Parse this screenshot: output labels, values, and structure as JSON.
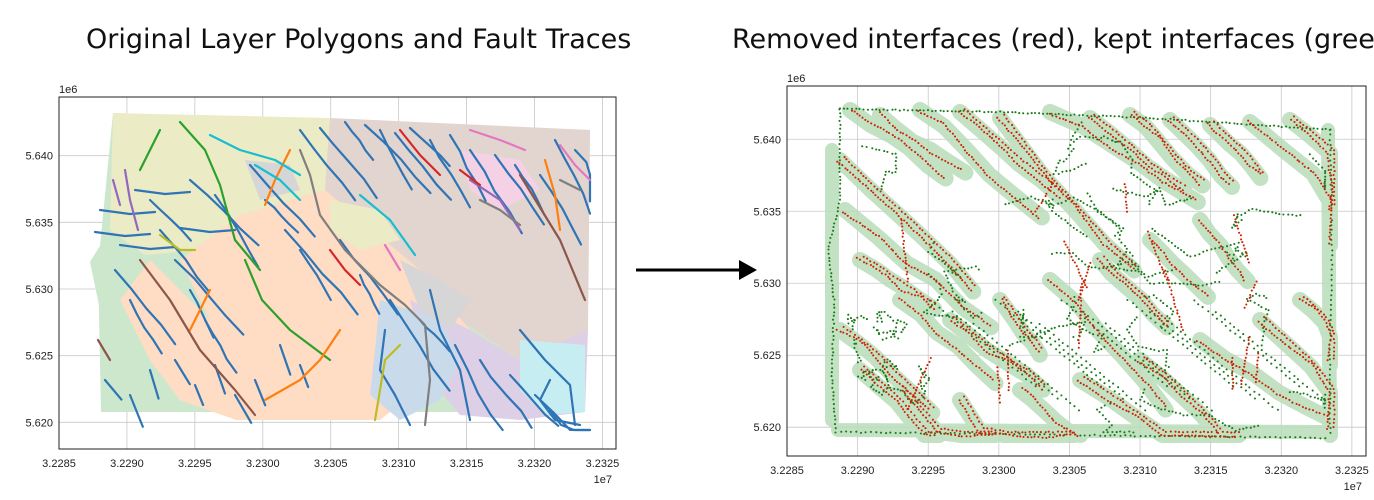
{
  "titles": {
    "left": "Original Layer Polygons and Fault Traces",
    "right": "Removed interfaces (red), kept interfaces (green)"
  },
  "chart_data": [
    {
      "type": "map",
      "title": "Original Layer Polygons and Fault Traces",
      "xlim": [
        3.2285,
        3.2326
      ],
      "ylim": [
        5.618,
        5.6444
      ],
      "x_offset_label": "1e7",
      "y_offset_label": "1e6",
      "x_ticks": [
        3.2285,
        3.229,
        3.2295,
        3.23,
        3.2305,
        3.231,
        3.2315,
        3.232,
        3.2325
      ],
      "x_tick_labels": [
        "3.2285",
        "3.2290",
        "3.2295",
        "3.2300",
        "3.2305",
        "3.2310",
        "3.2315",
        "3.2320",
        "3.2325"
      ],
      "y_ticks": [
        5.62,
        5.625,
        5.63,
        5.635,
        5.64
      ],
      "y_tick_labels": [
        "5.620",
        "5.625",
        "5.630",
        "5.635",
        "5.640"
      ],
      "grid": true,
      "polygon_colors": [
        "#cde7cd",
        "#ebebc6",
        "#e2d4cf",
        "#ddd0e6",
        "#ffdcc4",
        "#c9dbea",
        "#d6d6d6",
        "#c6eef2",
        "#f4d1e4"
      ],
      "fault_colors": [
        "#2f74b4",
        "#2ca02c",
        "#ff7f0e",
        "#9467bd",
        "#8c564b",
        "#e377c2",
        "#17becf",
        "#bcbd22",
        "#7f7f7f",
        "#d62728"
      ]
    },
    {
      "type": "scatter",
      "title": "Removed interfaces (red), kept interfaces (green)",
      "xlim": [
        3.2285,
        3.2326
      ],
      "ylim": [
        5.618,
        5.6437
      ],
      "x_offset_label": "1e7",
      "y_offset_label": "1e6",
      "x_ticks": [
        3.2285,
        3.229,
        3.2295,
        3.23,
        3.2305,
        3.231,
        3.2315,
        3.232,
        3.2325
      ],
      "x_tick_labels": [
        "3.2285",
        "3.2290",
        "3.2295",
        "3.2300",
        "3.2305",
        "3.2310",
        "3.2315",
        "3.2320",
        "3.2325"
      ],
      "y_ticks": [
        5.62,
        5.625,
        5.63,
        5.635,
        5.64
      ],
      "y_tick_labels": [
        "5.620",
        "5.625",
        "5.630",
        "5.635",
        "5.640"
      ],
      "grid": true,
      "series": [
        {
          "name": "removed interfaces",
          "color": "#cc2200"
        },
        {
          "name": "kept interfaces",
          "color": "#1a7a1a"
        }
      ],
      "buffer_color": "#b9dcb9"
    }
  ],
  "arrow_color": "#000000"
}
